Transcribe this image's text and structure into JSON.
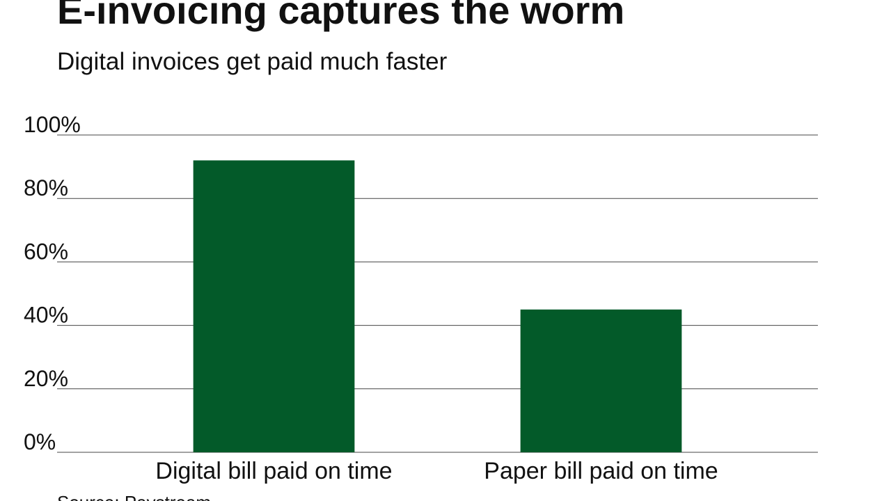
{
  "chart_data": {
    "type": "bar",
    "title": "E-invoicing captures the worm",
    "subtitle": "Digital invoices get paid much faster",
    "categories": [
      "Digital bill paid on time",
      "Paper bill paid on time"
    ],
    "values": [
      92,
      45
    ],
    "color": "#035a29",
    "ylim": [
      0,
      100
    ],
    "yticks": [
      {
        "value": 0,
        "label": "0%"
      },
      {
        "value": 20,
        "label": "20%"
      },
      {
        "value": 40,
        "label": "40%"
      },
      {
        "value": 60,
        "label": "60%"
      },
      {
        "value": 80,
        "label": "80%"
      },
      {
        "value": 100,
        "label": "100%"
      }
    ],
    "grid": true,
    "source": "Source: Paystream"
  }
}
